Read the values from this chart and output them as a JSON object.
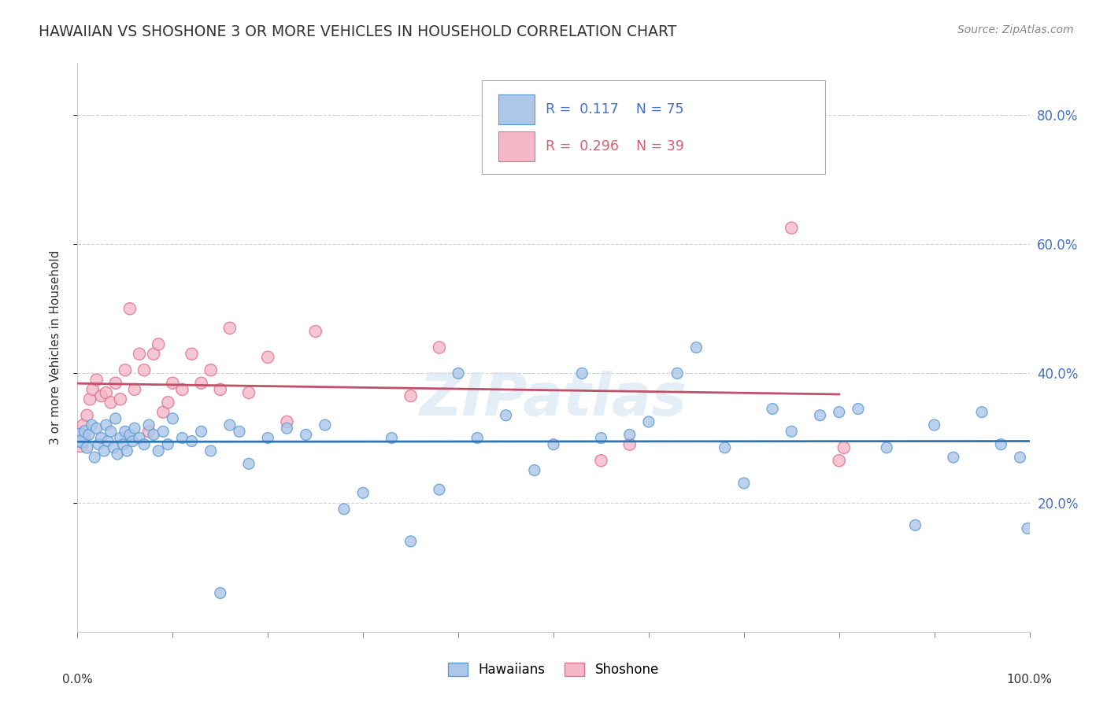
{
  "title": "HAWAIIAN VS SHOSHONE 3 OR MORE VEHICLES IN HOUSEHOLD CORRELATION CHART",
  "source": "Source: ZipAtlas.com",
  "ylabel": "3 or more Vehicles in Household",
  "r_hawaiian": 0.117,
  "n_hawaiian": 75,
  "r_shoshone": 0.296,
  "n_shoshone": 39,
  "hawaiian_color": "#aec6e8",
  "hawaiian_edge_color": "#5b9bd5",
  "hawaiian_line_color": "#2e75b6",
  "shoshone_color": "#f4b8c8",
  "shoshone_edge_color": "#e07090",
  "shoshone_line_color": "#c0506a",
  "background_color": "#ffffff",
  "watermark": "ZIPatlas",
  "hawaiian_x": [
    0.3,
    0.5,
    0.8,
    1.0,
    1.2,
    1.5,
    1.8,
    2.0,
    2.2,
    2.5,
    2.8,
    3.0,
    3.2,
    3.5,
    3.8,
    4.0,
    4.2,
    4.5,
    4.8,
    5.0,
    5.2,
    5.5,
    5.8,
    6.0,
    6.5,
    7.0,
    7.5,
    8.0,
    8.5,
    9.0,
    9.5,
    10.0,
    11.0,
    12.0,
    13.0,
    14.0,
    15.0,
    16.0,
    17.0,
    18.0,
    20.0,
    22.0,
    24.0,
    26.0,
    28.0,
    30.0,
    33.0,
    35.0,
    38.0,
    40.0,
    42.0,
    45.0,
    48.0,
    50.0,
    53.0,
    55.0,
    58.0,
    60.0,
    63.0,
    65.0,
    68.0,
    70.0,
    73.0,
    75.0,
    78.0,
    80.0,
    82.0,
    85.0,
    88.0,
    90.0,
    92.0,
    95.0,
    97.0,
    99.0,
    99.8
  ],
  "hawaiian_y": [
    30.0,
    29.5,
    31.0,
    28.5,
    30.5,
    32.0,
    27.0,
    31.5,
    29.0,
    30.0,
    28.0,
    32.0,
    29.5,
    31.0,
    28.5,
    33.0,
    27.5,
    30.0,
    29.0,
    31.0,
    28.0,
    30.5,
    29.5,
    31.5,
    30.0,
    29.0,
    32.0,
    30.5,
    28.0,
    31.0,
    29.0,
    33.0,
    30.0,
    29.5,
    31.0,
    28.0,
    6.0,
    32.0,
    31.0,
    26.0,
    30.0,
    31.5,
    30.5,
    32.0,
    19.0,
    21.5,
    30.0,
    14.0,
    22.0,
    40.0,
    30.0,
    33.5,
    25.0,
    29.0,
    40.0,
    30.0,
    30.5,
    32.5,
    40.0,
    44.0,
    28.5,
    23.0,
    34.5,
    31.0,
    33.5,
    34.0,
    34.5,
    28.5,
    16.5,
    32.0,
    27.0,
    34.0,
    29.0,
    27.0,
    16.0
  ],
  "hawaiian_sizes": [
    300,
    150,
    120,
    110,
    100,
    100,
    100,
    100,
    100,
    100,
    100,
    100,
    100,
    100,
    100,
    100,
    100,
    100,
    100,
    100,
    100,
    100,
    100,
    100,
    100,
    100,
    100,
    100,
    100,
    100,
    100,
    100,
    100,
    100,
    100,
    100,
    100,
    100,
    100,
    100,
    100,
    100,
    100,
    100,
    100,
    100,
    100,
    100,
    100,
    100,
    100,
    100,
    100,
    100,
    100,
    100,
    100,
    100,
    100,
    100,
    100,
    100,
    100,
    100,
    100,
    100,
    100,
    100,
    100,
    100,
    100,
    100,
    100,
    100,
    100
  ],
  "shoshone_x": [
    0.3,
    0.6,
    1.0,
    1.3,
    1.6,
    2.0,
    2.5,
    3.0,
    3.5,
    4.0,
    4.5,
    5.0,
    5.5,
    6.0,
    6.5,
    7.0,
    7.5,
    8.0,
    8.5,
    9.0,
    9.5,
    10.0,
    11.0,
    12.0,
    13.0,
    14.0,
    15.0,
    16.0,
    18.0,
    20.0,
    22.0,
    25.0,
    35.0,
    38.0,
    55.0,
    58.0,
    75.0,
    80.0,
    80.5
  ],
  "shoshone_y": [
    29.0,
    32.0,
    33.5,
    36.0,
    37.5,
    39.0,
    36.5,
    37.0,
    35.5,
    38.5,
    36.0,
    40.5,
    50.0,
    37.5,
    43.0,
    40.5,
    31.0,
    43.0,
    44.5,
    34.0,
    35.5,
    38.5,
    37.5,
    43.0,
    38.5,
    40.5,
    37.5,
    47.0,
    37.0,
    42.5,
    32.5,
    46.5,
    36.5,
    44.0,
    26.5,
    29.0,
    62.5,
    26.5,
    28.5
  ],
  "shoshone_sizes": [
    200,
    120,
    120,
    120,
    120,
    120,
    120,
    120,
    120,
    120,
    120,
    120,
    120,
    120,
    120,
    120,
    120,
    120,
    120,
    120,
    120,
    120,
    120,
    120,
    120,
    120,
    120,
    120,
    120,
    120,
    120,
    120,
    120,
    120,
    120,
    120,
    120,
    120,
    120
  ],
  "ytick_labels": [
    "20.0%",
    "40.0%",
    "60.0%",
    "80.0%"
  ],
  "ytick_values": [
    20,
    40,
    60,
    80
  ],
  "xlim": [
    0,
    100
  ],
  "ylim": [
    0,
    88
  ]
}
